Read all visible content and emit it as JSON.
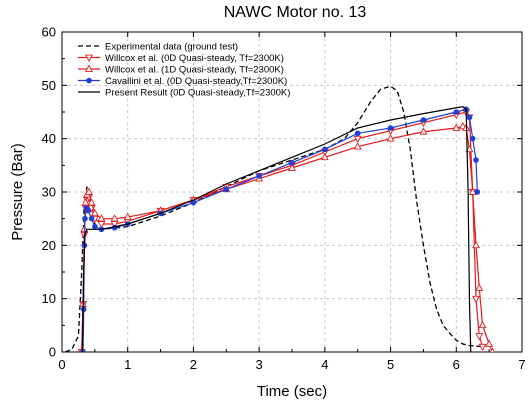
{
  "chart_data": {
    "type": "line",
    "title": "NAWC Motor no. 13",
    "xlabel": "Time (sec)",
    "ylabel": "Pressure (Bar)",
    "xlim": [
      0,
      7
    ],
    "ylim": [
      0,
      60
    ],
    "xticks": [
      0,
      1,
      2,
      3,
      4,
      5,
      6,
      7
    ],
    "yticks": [
      0,
      10,
      20,
      30,
      40,
      50,
      60
    ],
    "grid": true,
    "legend_position": "top-left",
    "series": [
      {
        "name": "Experimental data (ground test)",
        "color": "#000000",
        "dash": "dashed",
        "marker": "none",
        "points": [
          [
            0.05,
            0
          ],
          [
            0.15,
            0.5
          ],
          [
            0.25,
            3
          ],
          [
            0.3,
            15
          ],
          [
            0.34,
            28
          ],
          [
            0.38,
            31
          ],
          [
            0.42,
            29
          ],
          [
            0.46,
            26
          ],
          [
            0.5,
            24
          ],
          [
            0.6,
            23
          ],
          [
            1.0,
            23.5
          ],
          [
            1.5,
            25.5
          ],
          [
            2.0,
            28
          ],
          [
            2.5,
            31
          ],
          [
            3.0,
            34
          ],
          [
            3.5,
            36
          ],
          [
            4.0,
            38
          ],
          [
            4.3,
            40
          ],
          [
            4.5,
            43
          ],
          [
            4.7,
            47
          ],
          [
            4.85,
            49.3
          ],
          [
            5.0,
            49.8
          ],
          [
            5.1,
            49
          ],
          [
            5.2,
            45
          ],
          [
            5.3,
            38
          ],
          [
            5.4,
            28
          ],
          [
            5.5,
            20
          ],
          [
            5.6,
            13
          ],
          [
            5.7,
            8
          ],
          [
            5.8,
            5
          ],
          [
            5.9,
            3.5
          ],
          [
            6.0,
            2.2
          ],
          [
            6.1,
            1.5
          ],
          [
            6.2,
            1.2
          ],
          [
            6.4,
            1
          ]
        ]
      },
      {
        "name": "Willcox et al. (0D Quasi-steady, Tf=2300K)",
        "color": "#e41a1c",
        "dash": "solid",
        "marker": "triangle-down",
        "points": [
          [
            0.3,
            0
          ],
          [
            0.32,
            9
          ],
          [
            0.34,
            22
          ],
          [
            0.36,
            27
          ],
          [
            0.38,
            28.5
          ],
          [
            0.41,
            29
          ],
          [
            0.45,
            27
          ],
          [
            0.5,
            25
          ],
          [
            0.6,
            24
          ],
          [
            0.8,
            24
          ],
          [
            1.0,
            24.5
          ],
          [
            1.5,
            26.5
          ],
          [
            2.0,
            28.5
          ],
          [
            2.5,
            31
          ],
          [
            3.0,
            33
          ],
          [
            3.5,
            35
          ],
          [
            4.0,
            37.5
          ],
          [
            4.5,
            40
          ],
          [
            5.0,
            41.5
          ],
          [
            5.5,
            43
          ],
          [
            6.0,
            44.5
          ],
          [
            6.15,
            45
          ],
          [
            6.2,
            44
          ],
          [
            6.25,
            30
          ],
          [
            6.3,
            10
          ],
          [
            6.35,
            3
          ],
          [
            6.4,
            1
          ]
        ]
      },
      {
        "name": "Willcox et al. (1D Quasi-steady, Tf=2300K)",
        "color": "#e41a1c",
        "dash": "solid",
        "marker": "triangle-up",
        "points": [
          [
            0.3,
            0
          ],
          [
            0.32,
            9
          ],
          [
            0.34,
            23
          ],
          [
            0.36,
            28
          ],
          [
            0.38,
            29.5
          ],
          [
            0.41,
            30
          ],
          [
            0.45,
            28
          ],
          [
            0.5,
            26
          ],
          [
            0.6,
            25
          ],
          [
            0.8,
            25
          ],
          [
            1.0,
            25.3
          ],
          [
            1.5,
            26.5
          ],
          [
            2.0,
            28.5
          ],
          [
            2.5,
            30.5
          ],
          [
            3.0,
            32.5
          ],
          [
            3.5,
            34.5
          ],
          [
            4.0,
            36.5
          ],
          [
            4.5,
            38.5
          ],
          [
            5.0,
            40
          ],
          [
            5.5,
            41.3
          ],
          [
            6.0,
            42
          ],
          [
            6.1,
            42.3
          ],
          [
            6.15,
            42
          ],
          [
            6.2,
            38
          ],
          [
            6.25,
            30
          ],
          [
            6.3,
            20
          ],
          [
            6.35,
            12
          ],
          [
            6.4,
            5
          ],
          [
            6.5,
            1.5
          ],
          [
            6.55,
            0
          ]
        ]
      },
      {
        "name": "Cavallini et al. (0D Quasi-steady,Tf=2300K)",
        "color": "#1f3fd6",
        "dash": "solid",
        "marker": "circle",
        "points": [
          [
            0.32,
            0
          ],
          [
            0.33,
            8
          ],
          [
            0.34,
            20
          ],
          [
            0.35,
            25
          ],
          [
            0.37,
            27
          ],
          [
            0.4,
            26.5
          ],
          [
            0.45,
            25
          ],
          [
            0.5,
            23.5
          ],
          [
            0.6,
            23
          ],
          [
            0.8,
            23.3
          ],
          [
            1.0,
            24
          ],
          [
            1.5,
            26
          ],
          [
            2.0,
            28
          ],
          [
            2.5,
            30.5
          ],
          [
            3.0,
            33
          ],
          [
            3.5,
            35.5
          ],
          [
            4.0,
            38
          ],
          [
            4.5,
            41
          ],
          [
            5.0,
            42
          ],
          [
            5.5,
            43.5
          ],
          [
            6.0,
            45
          ],
          [
            6.15,
            45.5
          ],
          [
            6.2,
            44
          ],
          [
            6.25,
            40
          ],
          [
            6.3,
            36
          ],
          [
            6.32,
            30
          ]
        ]
      },
      {
        "name": "Present Result (0D Quasi-steady,Tf=2300K)",
        "color": "#000000",
        "dash": "solid",
        "marker": "none",
        "points": [
          [
            0.31,
            0
          ],
          [
            0.33,
            15
          ],
          [
            0.35,
            22
          ],
          [
            0.38,
            23
          ],
          [
            0.45,
            23
          ],
          [
            0.6,
            23
          ],
          [
            1.0,
            24
          ],
          [
            1.5,
            26
          ],
          [
            2.0,
            28.5
          ],
          [
            2.5,
            31.5
          ],
          [
            3.0,
            34
          ],
          [
            3.5,
            36.5
          ],
          [
            4.0,
            39
          ],
          [
            4.5,
            42
          ],
          [
            5.0,
            43.5
          ],
          [
            5.5,
            44.7
          ],
          [
            6.0,
            45.8
          ],
          [
            6.1,
            46
          ],
          [
            6.15,
            45.5
          ],
          [
            6.18,
            30
          ],
          [
            6.2,
            10
          ],
          [
            6.22,
            0
          ]
        ]
      }
    ]
  }
}
